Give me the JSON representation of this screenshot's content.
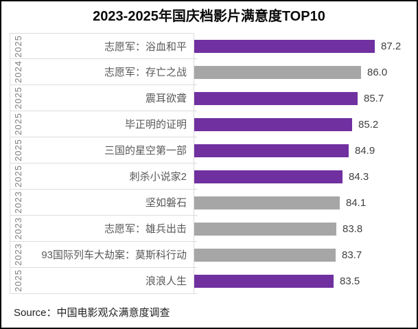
{
  "title": "2023-2025年国庆档影片满意度TOP10",
  "source_note": "Source：中国电影观众满意度调查",
  "colors": {
    "bar_2025": "#7030A0",
    "bar_other_years": "#A6A6A6",
    "frame_border": "#000000",
    "grid_line": "#D9D9D9",
    "movie_label_text": "#595959",
    "year_label_text": "#7F7F7F",
    "value_label_text": "#404040"
  },
  "chart_data": {
    "type": "bar",
    "orientation": "horizontal",
    "title": "2023-2025年国庆档影片满意度TOP10",
    "xlabel": "",
    "ylabel": "",
    "xlim": [
      71,
      90
    ],
    "grid": false,
    "legend": false,
    "value_axis_visible": false,
    "rows": [
      {
        "year": "2025",
        "title": "志愿军：浴血和平",
        "value": 87.2,
        "value_label": "87.2",
        "color": "#7030A0"
      },
      {
        "year": "2024",
        "title": "志愿军：存亡之战",
        "value": 86.0,
        "value_label": "86.0",
        "color": "#A6A6A6"
      },
      {
        "year": "2025",
        "title": "震耳欲聋",
        "value": 85.7,
        "value_label": "85.7",
        "color": "#7030A0"
      },
      {
        "year": "2025",
        "title": "毕正明的证明",
        "value": 85.2,
        "value_label": "85.2",
        "color": "#7030A0"
      },
      {
        "year": "2025",
        "title": "三国的星空第一部",
        "value": 84.9,
        "value_label": "84.9",
        "color": "#7030A0"
      },
      {
        "year": "2025",
        "title": "刺杀小说家2",
        "value": 84.3,
        "value_label": "84.3",
        "color": "#7030A0"
      },
      {
        "year": "2023",
        "title": "坚如磐石",
        "value": 84.1,
        "value_label": "84.1",
        "color": "#A6A6A6"
      },
      {
        "year": "2023",
        "title": "志愿军：雄兵出击",
        "value": 83.8,
        "value_label": "83.8",
        "color": "#A6A6A6"
      },
      {
        "year": "2023",
        "title": "93国际列车大劫案：莫斯科行动",
        "value": 83.7,
        "value_label": "83.7",
        "color": "#A6A6A6"
      },
      {
        "year": "2025",
        "title": "浪浪人生",
        "value": 83.5,
        "value_label": "83.5",
        "color": "#7030A0"
      }
    ]
  }
}
